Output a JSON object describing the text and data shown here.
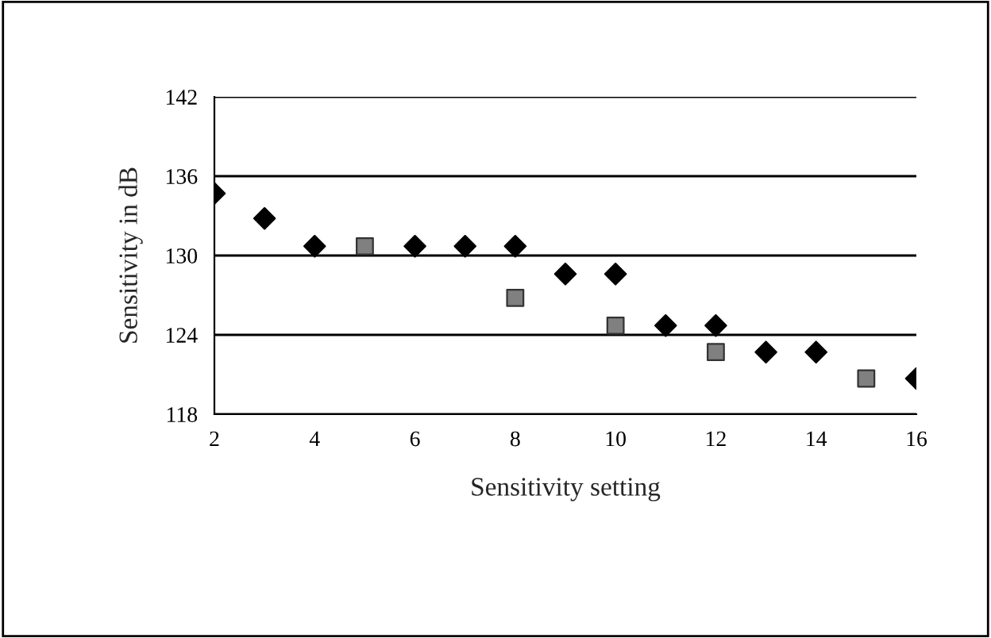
{
  "chart_data": {
    "type": "scatter",
    "xlabel": "Sensitivity setting",
    "ylabel": "Sensitivity in dB",
    "xlim": [
      2,
      16
    ],
    "xticks": [
      2,
      4,
      6,
      8,
      10,
      12,
      14,
      16
    ],
    "ylim": [
      118,
      142
    ],
    "yticks": [
      118,
      124,
      130,
      136,
      142
    ],
    "grid": "y",
    "series": [
      {
        "color": "#000000",
        "marker": "diamond",
        "x": [
          2,
          3,
          4,
          6,
          7,
          8,
          9,
          10,
          11,
          12,
          13,
          14,
          16
        ],
        "values": [
          134.7,
          132.8,
          130.7,
          130.7,
          130.7,
          130.7,
          128.6,
          128.6,
          124.7,
          124.7,
          122.7,
          122.7,
          120.7
        ]
      },
      {
        "color": "#808080",
        "marker": "square",
        "x": [
          5,
          8,
          10,
          12,
          15
        ],
        "values": [
          130.7,
          126.8,
          124.7,
          122.7,
          120.7
        ]
      }
    ]
  }
}
